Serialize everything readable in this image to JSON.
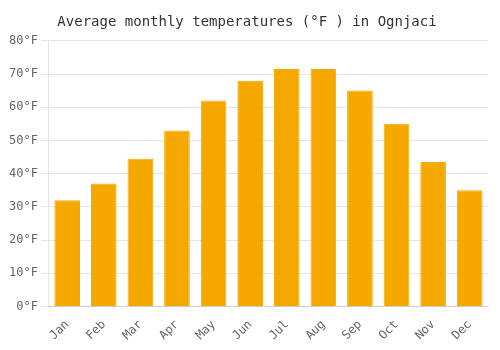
{
  "chart_data": {
    "type": "bar",
    "title": "Average monthly temperatures (°F ) in Ognjaci",
    "categories": [
      "Jan",
      "Feb",
      "Mar",
      "Apr",
      "May",
      "Jun",
      "Jul",
      "Aug",
      "Sep",
      "Oct",
      "Nov",
      "Dec"
    ],
    "values": [
      32,
      37,
      44.5,
      53,
      62,
      68,
      71.5,
      71.5,
      65,
      55,
      43.5,
      35
    ],
    "color": "#F5A800",
    "ylim": [
      0,
      80
    ],
    "yticks": [
      {
        "value": 0,
        "label": "0°F"
      },
      {
        "value": 10,
        "label": "10°F"
      },
      {
        "value": 20,
        "label": "20°F"
      },
      {
        "value": 30,
        "label": "30°F"
      },
      {
        "value": 40,
        "label": "40°F"
      },
      {
        "value": 50,
        "label": "50°F"
      },
      {
        "value": 60,
        "label": "60°F"
      },
      {
        "value": 70,
        "label": "70°F"
      },
      {
        "value": 80,
        "label": "80°F"
      }
    ],
    "grid": true
  }
}
